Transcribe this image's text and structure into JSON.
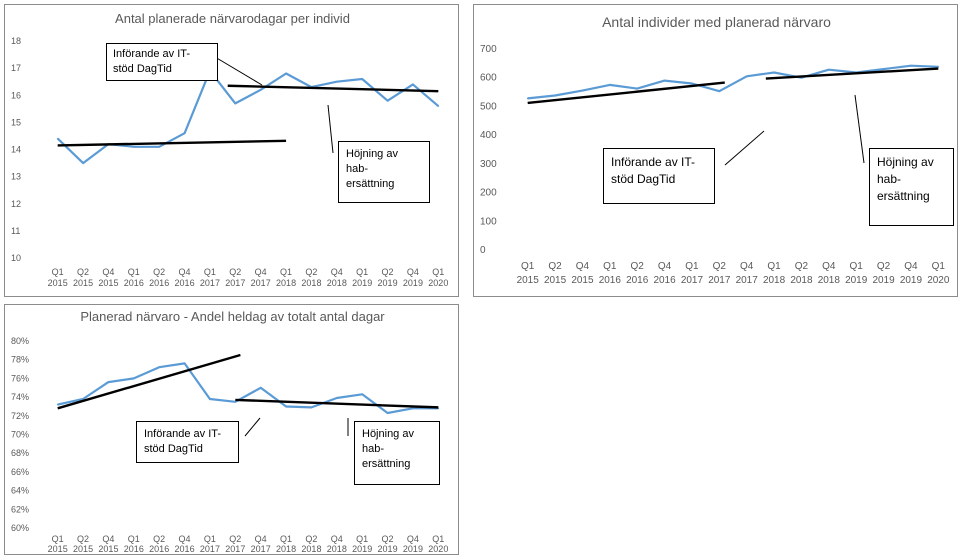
{
  "colors": {
    "series": "#5b9bd5",
    "trend": "#000000",
    "text": "#595959"
  },
  "chart_data": [
    {
      "type": "line",
      "title": "Antal planerade närvarodagar per individ",
      "categories": [
        "Q1 2015",
        "Q2 2015",
        "Q4 2015",
        "Q1 2016",
        "Q2 2016",
        "Q4 2016",
        "Q1 2017",
        "Q2 2017",
        "Q4 2017",
        "Q1 2018",
        "Q2 2018",
        "Q4 2018",
        "Q1 2019",
        "Q2 2019",
        "Q4 2019",
        "Q1 2020"
      ],
      "category_lines": [
        [
          "Q1",
          "2015"
        ],
        [
          "Q2",
          "2015"
        ],
        [
          "Q4",
          "2015"
        ],
        [
          "Q1",
          "2016"
        ],
        [
          "Q2",
          "2016"
        ],
        [
          "Q4",
          "2016"
        ],
        [
          "Q1",
          "2017"
        ],
        [
          "Q2",
          "2017"
        ],
        [
          "Q4",
          "2017"
        ],
        [
          "Q1",
          "2018"
        ],
        [
          "Q2",
          "2018"
        ],
        [
          "Q4",
          "2018"
        ],
        [
          "Q1",
          "2019"
        ],
        [
          "Q2",
          "2019"
        ],
        [
          "Q4",
          "2019"
        ],
        [
          "Q1",
          "2020"
        ]
      ],
      "values": [
        14.4,
        13.5,
        14.2,
        14.1,
        14.1,
        14.6,
        16.9,
        15.7,
        16.2,
        16.8,
        16.3,
        16.5,
        16.6,
        15.8,
        16.4,
        15.6
      ],
      "ylim": [
        10,
        18
      ],
      "yticks": [
        10,
        11,
        12,
        13,
        14,
        15,
        16,
        17,
        18
      ],
      "ytick_labels": [
        "10",
        "11",
        "12",
        "13",
        "14",
        "15",
        "16",
        "17",
        "18"
      ],
      "gridlines": false,
      "trendlines": [
        {
          "x_start": 0,
          "y_start": 14.15,
          "x_end": 9,
          "y_end": 14.32
        },
        {
          "x_start": 6.7,
          "y_start": 16.35,
          "x_end": 15,
          "y_end": 16.15
        }
      ],
      "annotations": [
        {
          "lines": [
            "Införande av IT-",
            "stöd DagTid"
          ]
        },
        {
          "lines": [
            "Höjning av",
            "hab-",
            "ersättning"
          ]
        }
      ]
    },
    {
      "type": "line",
      "title": "Antal individer med planerad närvaro",
      "categories": [
        "Q1 2015",
        "Q2 2015",
        "Q4 2015",
        "Q1 2016",
        "Q2 2016",
        "Q4 2016",
        "Q1 2017",
        "Q2 2017",
        "Q4 2017",
        "Q1 2018",
        "Q2 2018",
        "Q4 2018",
        "Q1 2019",
        "Q2 2019",
        "Q4 2019",
        "Q1 2020"
      ],
      "category_lines": [
        [
          "Q1",
          "2015"
        ],
        [
          "Q2",
          "2015"
        ],
        [
          "Q4",
          "2015"
        ],
        [
          "Q1",
          "2016"
        ],
        [
          "Q2",
          "2016"
        ],
        [
          "Q4",
          "2016"
        ],
        [
          "Q1",
          "2017"
        ],
        [
          "Q2",
          "2017"
        ],
        [
          "Q4",
          "2017"
        ],
        [
          "Q1",
          "2018"
        ],
        [
          "Q2",
          "2018"
        ],
        [
          "Q4",
          "2018"
        ],
        [
          "Q1",
          "2019"
        ],
        [
          "Q2",
          "2019"
        ],
        [
          "Q4",
          "2019"
        ],
        [
          "Q1",
          "2020"
        ]
      ],
      "values": [
        528,
        538,
        555,
        575,
        562,
        590,
        580,
        553,
        605,
        618,
        600,
        628,
        618,
        630,
        642,
        638
      ],
      "ylim": [
        0,
        700
      ],
      "yticks": [
        0,
        100,
        200,
        300,
        400,
        500,
        600,
        700
      ],
      "ytick_labels": [
        "0",
        "100",
        "200",
        "300",
        "400",
        "500",
        "600",
        "700"
      ],
      "gridlines": false,
      "trendlines": [
        {
          "x_start": 0,
          "y_start": 512,
          "x_end": 7.2,
          "y_end": 583
        },
        {
          "x_start": 8.7,
          "y_start": 597,
          "x_end": 15,
          "y_end": 632
        }
      ],
      "annotations": [
        {
          "lines": [
            "Införande av IT-",
            "stöd DagTid"
          ]
        },
        {
          "lines": [
            "Höjning av",
            "hab-",
            "ersättning"
          ]
        }
      ]
    },
    {
      "type": "line",
      "title": "Planerad närvaro - Andel heldag av totalt antal dagar",
      "categories": [
        "Q1 2015",
        "Q2 2015",
        "Q4 2015",
        "Q1 2016",
        "Q2 2016",
        "Q4 2016",
        "Q1 2017",
        "Q2 2017",
        "Q4 2017",
        "Q1 2018",
        "Q2 2018",
        "Q4 2018",
        "Q1 2019",
        "Q2 2019",
        "Q4 2019",
        "Q1 2020"
      ],
      "category_lines": [
        [
          "Q1",
          "2015"
        ],
        [
          "Q2",
          "2015"
        ],
        [
          "Q4",
          "2015"
        ],
        [
          "Q1",
          "2016"
        ],
        [
          "Q2",
          "2016"
        ],
        [
          "Q4",
          "2016"
        ],
        [
          "Q1",
          "2017"
        ],
        [
          "Q2",
          "2017"
        ],
        [
          "Q4",
          "2017"
        ],
        [
          "Q1",
          "2018"
        ],
        [
          "Q2",
          "2018"
        ],
        [
          "Q4",
          "2018"
        ],
        [
          "Q1",
          "2019"
        ],
        [
          "Q2",
          "2019"
        ],
        [
          "Q4",
          "2019"
        ],
        [
          "Q1",
          "2020"
        ]
      ],
      "values": [
        73.2,
        73.8,
        75.6,
        76.0,
        77.2,
        77.6,
        73.8,
        73.5,
        75.0,
        73.0,
        72.9,
        73.9,
        74.3,
        72.3,
        72.8,
        72.8
      ],
      "ylim": [
        60,
        80
      ],
      "yticks": [
        60,
        62,
        64,
        66,
        68,
        70,
        72,
        74,
        76,
        78,
        80
      ],
      "ytick_labels": [
        "60%",
        "62%",
        "64%",
        "66%",
        "68%",
        "70%",
        "72%",
        "74%",
        "76%",
        "78%",
        "80%"
      ],
      "gridlines": false,
      "trendlines": [
        {
          "x_start": 0,
          "y_start": 72.8,
          "x_end": 7.2,
          "y_end": 78.5
        },
        {
          "x_start": 7,
          "y_start": 73.7,
          "x_end": 15,
          "y_end": 72.9
        }
      ],
      "annotations": [
        {
          "lines": [
            "Införande av IT-",
            "stöd DagTid"
          ]
        },
        {
          "lines": [
            "Höjning av",
            "hab-",
            "ersättning"
          ]
        }
      ]
    }
  ]
}
